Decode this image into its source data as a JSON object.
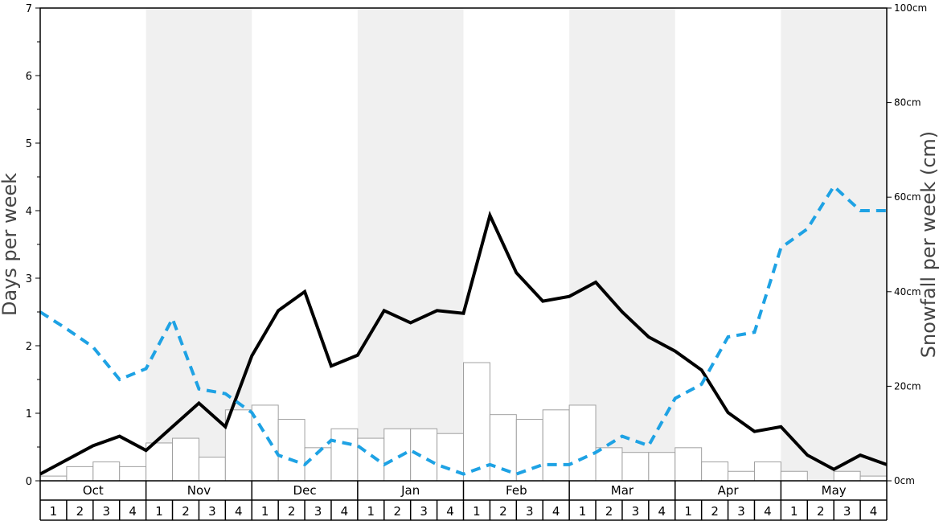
{
  "chart_data": {
    "type": "bar+line",
    "title": "",
    "ylabel_left": "Days per week",
    "ylabel_right": "Snowfall per week (cm)",
    "ylim_left": [
      0,
      7
    ],
    "ylim_right": [
      0,
      100
    ],
    "yticks_left": [
      "0",
      "1",
      "2",
      "3",
      "4",
      "5",
      "6",
      "7"
    ],
    "yticks_right": [
      "0cm",
      "20cm",
      "40cm",
      "60cm",
      "80cm",
      "100cm"
    ],
    "months": [
      "Oct",
      "Nov",
      "Dec",
      "Jan",
      "Feb",
      "Mar",
      "Apr",
      "May"
    ],
    "week_labels": [
      "1",
      "2",
      "3",
      "4"
    ],
    "shaded_months": [
      "Nov",
      "Jan",
      "Mar",
      "May"
    ],
    "colors": {
      "bars_fill": "#ffffff",
      "bars_stroke": "#a0a0a0",
      "shade": "#f0f0f0",
      "solid_line": "#000000",
      "dashed_line": "#1ea2e4"
    },
    "series": [
      {
        "kind": "bar",
        "axis": "right",
        "values": [
          1,
          3,
          4,
          3,
          8,
          9,
          5,
          15,
          16,
          13,
          7,
          11,
          9,
          11,
          11,
          10,
          25,
          14,
          13,
          15,
          16,
          7,
          6,
          6,
          7,
          4,
          2,
          4,
          2,
          0,
          2,
          1
        ]
      },
      {
        "kind": "line",
        "style": "solid",
        "axis": "left",
        "values": [
          0.1,
          0.31,
          0.52,
          0.66,
          0.45,
          0.8,
          1.15,
          0.8,
          1.85,
          2.52,
          2.8,
          1.7,
          1.86,
          2.52,
          2.34,
          2.52,
          2.48,
          3.93,
          3.08,
          2.66,
          2.73,
          2.94,
          2.5,
          2.13,
          1.92,
          1.64,
          1.01,
          0.73,
          0.8,
          0.38,
          0.17,
          0.38,
          0.24
        ]
      },
      {
        "kind": "line",
        "style": "dashed",
        "axis": "left",
        "values": [
          2.5,
          2.25,
          1.98,
          1.5,
          1.66,
          2.4,
          1.36,
          1.29,
          1.01,
          0.38,
          0.24,
          0.6,
          0.52,
          0.24,
          0.45,
          0.24,
          0.1,
          0.24,
          0.1,
          0.24,
          0.24,
          0.42,
          0.66,
          0.52,
          1.22,
          1.43,
          2.13,
          2.2,
          3.45,
          3.73,
          4.36,
          4.0,
          4.0
        ]
      }
    ]
  }
}
